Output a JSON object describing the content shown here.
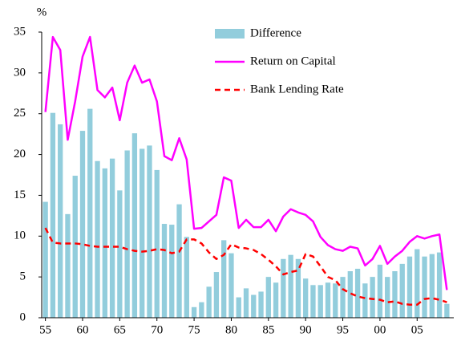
{
  "chart_data": {
    "type": "bar",
    "y_label": "%",
    "categories": [
      "55",
      null,
      null,
      null,
      null,
      "60",
      null,
      null,
      null,
      null,
      "65",
      null,
      null,
      null,
      null,
      "70",
      null,
      null,
      null,
      null,
      "75",
      null,
      null,
      null,
      null,
      "80",
      null,
      null,
      null,
      null,
      "85",
      null,
      null,
      null,
      null,
      "90",
      null,
      null,
      null,
      null,
      "95",
      null,
      null,
      null,
      null,
      "00",
      null,
      null,
      null,
      null,
      "05",
      null,
      null,
      null,
      null
    ],
    "ylim": [
      0,
      35
    ],
    "yticks": [
      0,
      5,
      10,
      15,
      20,
      25,
      30,
      35
    ],
    "grid": false,
    "legend": "upper right",
    "series": [
      {
        "name": "Difference",
        "type": "bar",
        "color": "#92cddc",
        "values": [
          14.2,
          25.1,
          23.7,
          12.7,
          17.4,
          22.9,
          25.6,
          19.2,
          18.3,
          19.5,
          15.6,
          20.5,
          22.6,
          20.7,
          21.1,
          18.1,
          11.5,
          11.4,
          13.9,
          9.9,
          1.3,
          1.9,
          3.8,
          5.6,
          9.5,
          7.9,
          2.5,
          3.6,
          2.8,
          3.2,
          5.0,
          4.3,
          7.2,
          7.7,
          7.2,
          4.8,
          4.0,
          4.0,
          4.3,
          4.2,
          5.0,
          5.7,
          6.0,
          4.2,
          5.0,
          6.5,
          5.0,
          5.7,
          6.6,
          7.5,
          8.4,
          7.5,
          7.8,
          8.0,
          1.7
        ]
      },
      {
        "name": "Return on Capital",
        "type": "line",
        "color": "#ff00ff",
        "line_style": "solid",
        "values": [
          25.2,
          34.4,
          32.8,
          21.8,
          26.5,
          32.0,
          34.4,
          27.9,
          27.0,
          28.2,
          24.2,
          28.8,
          30.9,
          28.8,
          29.2,
          26.5,
          19.8,
          19.3,
          22.0,
          19.4,
          10.9,
          11.0,
          11.8,
          12.6,
          17.2,
          16.8,
          11.0,
          12.0,
          11.1,
          11.1,
          12.0,
          10.6,
          12.4,
          13.3,
          12.9,
          12.6,
          11.8,
          9.9,
          8.9,
          8.4,
          8.2,
          8.7,
          8.5,
          6.4,
          7.2,
          8.8,
          6.6,
          7.5,
          8.2,
          9.3,
          10.0,
          9.7,
          10.0,
          10.2,
          3.4
        ]
      },
      {
        "name": "Bank Lending Rate",
        "type": "line",
        "color": "#ff0000",
        "line_style": "dashed",
        "values": [
          11.0,
          9.2,
          9.1,
          9.1,
          9.1,
          9.0,
          8.8,
          8.7,
          8.7,
          8.7,
          8.7,
          8.4,
          8.2,
          8.1,
          8.2,
          8.4,
          8.3,
          7.9,
          8.1,
          9.6,
          9.6,
          9.1,
          8.0,
          7.2,
          7.7,
          9.0,
          8.6,
          8.5,
          8.3,
          7.8,
          7.1,
          6.3,
          5.3,
          5.6,
          5.8,
          7.8,
          7.5,
          6.3,
          5.0,
          4.6,
          3.5,
          3.0,
          2.6,
          2.4,
          2.3,
          2.2,
          1.9,
          2.0,
          1.7,
          1.6,
          1.6,
          2.3,
          2.4,
          2.2,
          1.9
        ]
      }
    ]
  }
}
